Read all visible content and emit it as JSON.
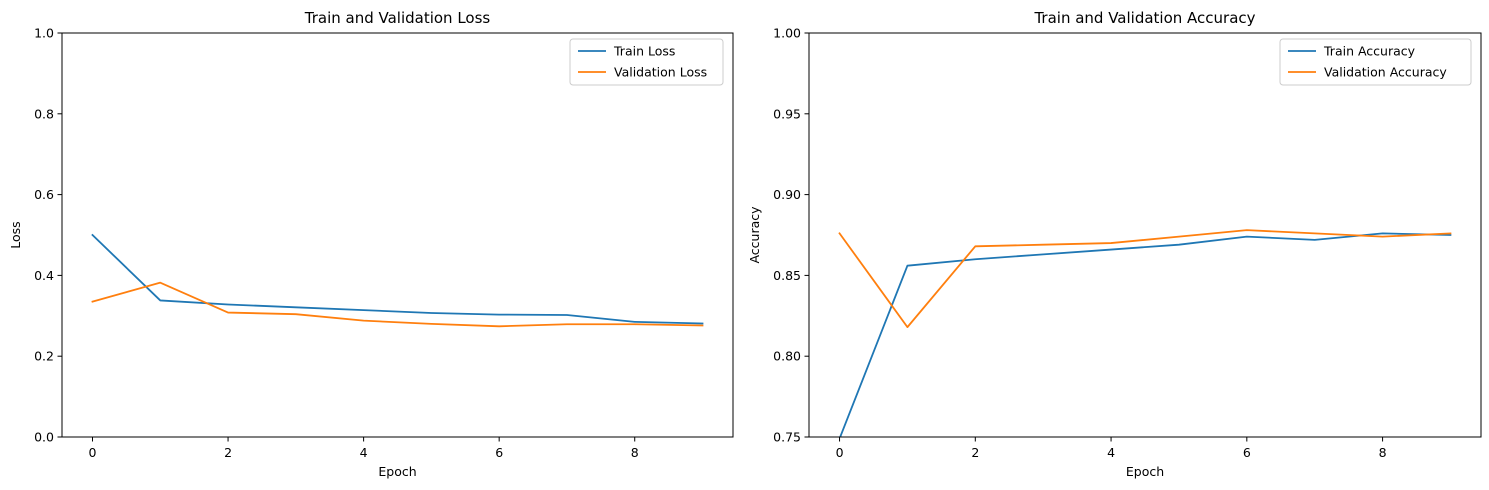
{
  "chart_data": [
    {
      "type": "line",
      "title": "Train and Validation Loss",
      "xlabel": "Epoch",
      "ylabel": "Loss",
      "x": [
        0,
        1,
        2,
        3,
        4,
        5,
        6,
        7,
        8,
        9
      ],
      "xlim": [
        -0.45,
        9.45
      ],
      "ylim": [
        0,
        1
      ],
      "xticks": [
        0,
        2,
        4,
        6,
        8
      ],
      "yticks": [
        0.0,
        0.2,
        0.4,
        0.6,
        0.8,
        1.0
      ],
      "xtick_labels": [
        "0",
        "2",
        "4",
        "6",
        "8"
      ],
      "ytick_labels": [
        "0.0",
        "0.2",
        "0.4",
        "0.6",
        "0.8",
        "1.0"
      ],
      "grid": false,
      "legend_position": "top-right",
      "series": [
        {
          "name": "Train Loss",
          "color": "#1f77b4",
          "values": [
            0.5,
            0.338,
            0.328,
            0.321,
            0.314,
            0.307,
            0.303,
            0.302,
            0.285,
            0.281
          ]
        },
        {
          "name": "Validation Loss",
          "color": "#ff7f0e",
          "values": [
            0.335,
            0.382,
            0.308,
            0.304,
            0.288,
            0.28,
            0.274,
            0.279,
            0.279,
            0.276
          ]
        }
      ]
    },
    {
      "type": "line",
      "title": "Train and Validation Accuracy",
      "xlabel": "Epoch",
      "ylabel": "Accuracy",
      "x": [
        0,
        1,
        2,
        3,
        4,
        5,
        6,
        7,
        8,
        9
      ],
      "xlim": [
        -0.45,
        9.45
      ],
      "ylim": [
        0.75,
        1.0
      ],
      "xticks": [
        0,
        2,
        4,
        6,
        8
      ],
      "yticks": [
        0.75,
        0.8,
        0.85,
        0.9,
        0.95,
        1.0
      ],
      "xtick_labels": [
        "0",
        "2",
        "4",
        "6",
        "8"
      ],
      "ytick_labels": [
        "0.75",
        "0.80",
        "0.85",
        "0.90",
        "0.95",
        "1.00"
      ],
      "grid": false,
      "legend_position": "top-right",
      "series": [
        {
          "name": "Train Accuracy",
          "color": "#1f77b4",
          "values": [
            0.749,
            0.856,
            0.86,
            0.863,
            0.866,
            0.869,
            0.874,
            0.872,
            0.876,
            0.875
          ]
        },
        {
          "name": "Validation Accuracy",
          "color": "#ff7f0e",
          "values": [
            0.876,
            0.818,
            0.868,
            0.869,
            0.87,
            0.874,
            0.878,
            0.876,
            0.874,
            0.876
          ]
        }
      ]
    }
  ]
}
